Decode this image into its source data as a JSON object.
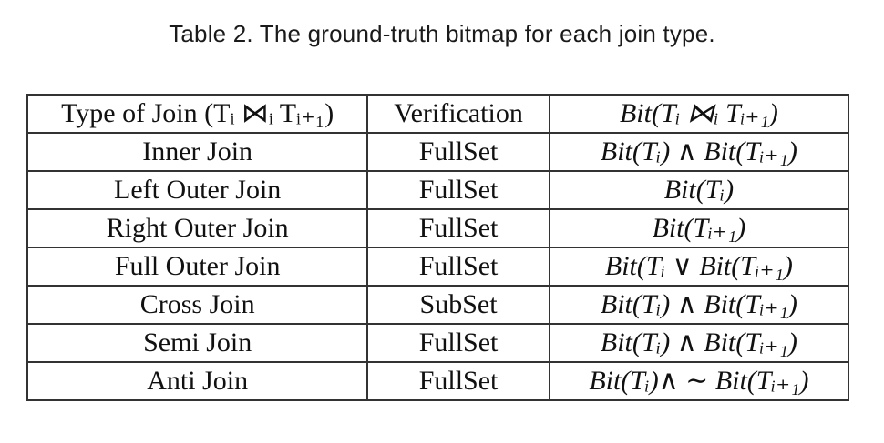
{
  "caption": "Table 2.  The ground-truth bitmap for each join type.",
  "table": {
    "header": [
      "Type of Join (Tᵢ ⋈ᵢ Tᵢ₊₁)",
      "Verification",
      "Bit(Tᵢ ⋈ᵢ Tᵢ₊₁)"
    ],
    "rows": [
      [
        "Inner Join",
        "FullSet",
        "Bit(Tᵢ) ∧ Bit(Tᵢ₊₁)"
      ],
      [
        "Left Outer Join",
        "FullSet",
        "Bit(Tᵢ)"
      ],
      [
        "Right Outer Join",
        "FullSet",
        "Bit(Tᵢ₊₁)"
      ],
      [
        "Full Outer Join",
        "FullSet",
        "Bit(Tᵢ ∨ Bit(Tᵢ₊₁)"
      ],
      [
        "Cross Join",
        "SubSet",
        "Bit(Tᵢ) ∧ Bit(Tᵢ₊₁)"
      ],
      [
        "Semi Join",
        "FullSet",
        "Bit(Tᵢ) ∧ Bit(Tᵢ₊₁)"
      ],
      [
        "Anti Join",
        "FullSet",
        "Bit(Tᵢ)∧ ∼ Bit(Tᵢ₊₁)"
      ]
    ]
  }
}
